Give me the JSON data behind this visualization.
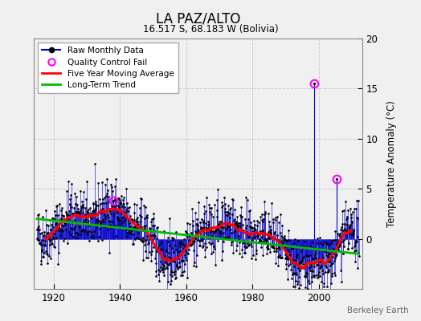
{
  "title": "LA PAZ/ALTO",
  "subtitle": "16.517 S, 68.183 W (Bolivia)",
  "ylabel": "Temperature Anomaly (°C)",
  "watermark": "Berkeley Earth",
  "xlim": [
    1914,
    2013
  ],
  "ylim": [
    -5,
    20
  ],
  "yticks": [
    0,
    5,
    10,
    15,
    20
  ],
  "xticks": [
    1920,
    1940,
    1960,
    1980,
    2000
  ],
  "bg_color": "#f0f0f0",
  "plot_bg_color": "#f0f0f0",
  "raw_color": "#0000cc",
  "raw_marker_color": "#000000",
  "qc_fail_color": "#ff00ff",
  "moving_avg_color": "#ff0000",
  "trend_color": "#00bb00",
  "seed": 42
}
